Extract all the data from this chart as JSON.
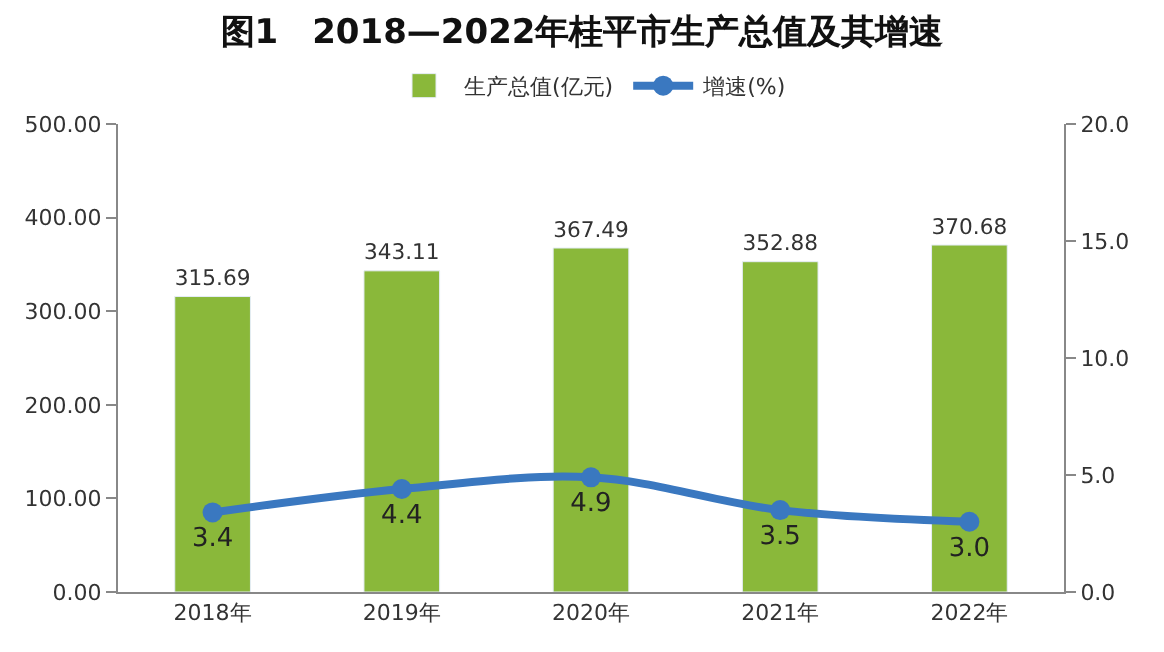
{
  "chart_data": {
    "type": "bar",
    "title": "图1　2018—2022年桂平市生产总值及其增速",
    "categories": [
      "2018年",
      "2019年",
      "2020年",
      "2021年",
      "2022年"
    ],
    "series": [
      {
        "name": "生产总值(亿元)",
        "color": "#8ab83a",
        "values": [
          315.69,
          343.11,
          367.49,
          352.88,
          370.68
        ]
      },
      {
        "name": "增速(%)",
        "type": "line",
        "axis": "y2",
        "color": "#3a78c0",
        "values": [
          3.4,
          4.4,
          4.9,
          3.5,
          3.0
        ],
        "value_labels": [
          "3.4",
          "4.4",
          "4.9",
          "3.5",
          "3.0"
        ]
      }
    ],
    "ylim": [
      0,
      500
    ],
    "yticks": [
      {
        "value": 0,
        "label": "0.00"
      },
      {
        "value": 100,
        "label": "100.00"
      },
      {
        "value": 200,
        "label": "200.00"
      },
      {
        "value": 300,
        "label": "300.00"
      },
      {
        "value": 400,
        "label": "400.00"
      },
      {
        "value": 500,
        "label": "500.00"
      }
    ],
    "y2lim": [
      0,
      20
    ],
    "y2ticks": [
      {
        "value": 0,
        "label": "0.0"
      },
      {
        "value": 5,
        "label": "5.0"
      },
      {
        "value": 10,
        "label": "10.0"
      },
      {
        "value": 15,
        "label": "15.0"
      },
      {
        "value": 20,
        "label": "20.0"
      }
    ],
    "data_labels": true,
    "legend": "top",
    "marker": "circle",
    "line_style": "solid"
  }
}
